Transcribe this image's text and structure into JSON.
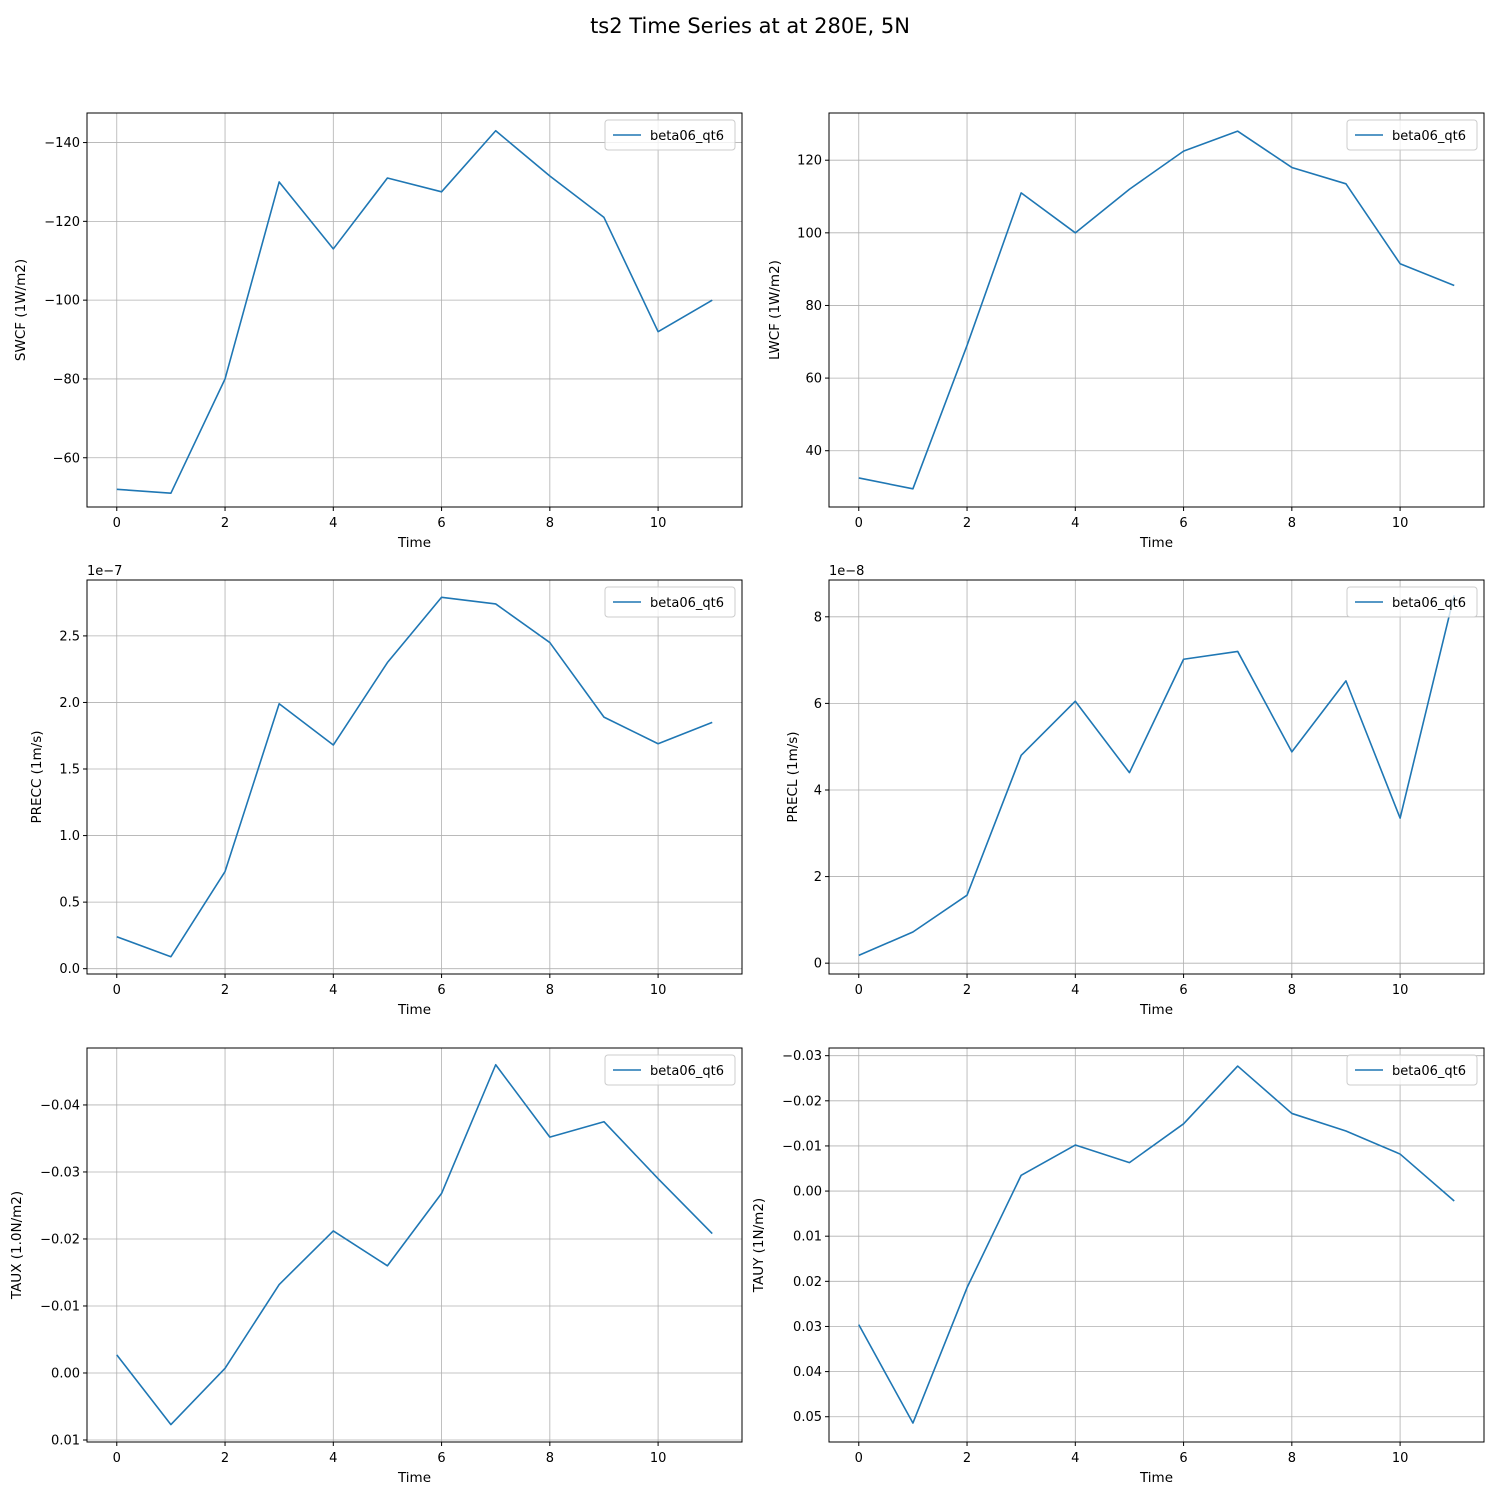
{
  "figure": {
    "title": "ts2 Time Series at at 280E, 5N"
  },
  "colors": {
    "series": "#1f77b4",
    "grid": "#b0b0b0",
    "axes": "#000000",
    "legend_border": "#cccccc"
  },
  "chart_data": [
    {
      "type": "line",
      "ylabel": "SWCF (1W/m2)",
      "xlabel": "Time",
      "invert_y": true,
      "ylim": [
        -47.5,
        -147.5
      ],
      "xlim": [
        -0.55,
        11.55
      ],
      "xticks": [
        0,
        2,
        4,
        6,
        8,
        10
      ],
      "yticks": [
        -60,
        -80,
        -100,
        -120,
        -140
      ],
      "ytick_labels": [
        "−60",
        "−80",
        "−100",
        "−120",
        "−140"
      ],
      "offset_text": "",
      "grid": true,
      "legend": "top-right",
      "series": [
        {
          "name": "beta06_qt6",
          "x": [
            0,
            1,
            2,
            3,
            4,
            5,
            6,
            7,
            8,
            9,
            10,
            11
          ],
          "y": [
            -52,
            -51,
            -80,
            -130,
            -113,
            -131,
            -127.5,
            -143,
            -131.5,
            -121,
            -92,
            -100
          ]
        }
      ]
    },
    {
      "type": "line",
      "ylabel": "LWCF (1W/m2)",
      "xlabel": "Time",
      "invert_y": true,
      "ylim": [
        24.5,
        133
      ],
      "xlim": [
        -0.55,
        11.55
      ],
      "xticks": [
        0,
        2,
        4,
        6,
        8,
        10
      ],
      "yticks": [
        40,
        60,
        80,
        100,
        120
      ],
      "ytick_labels": [
        "40",
        "60",
        "80",
        "100",
        "120"
      ],
      "offset_text": "",
      "grid": true,
      "legend": "top-right",
      "series": [
        {
          "name": "beta06_qt6",
          "x": [
            0,
            1,
            2,
            3,
            4,
            5,
            6,
            7,
            8,
            9,
            10,
            11
          ],
          "y": [
            32.5,
            29.5,
            69,
            111,
            100,
            112,
            122.5,
            128,
            118,
            113.5,
            91.5,
            85.5
          ]
        }
      ]
    },
    {
      "type": "line",
      "ylabel": "PRECC (1m/s)",
      "xlabel": "Time",
      "invert_y": true,
      "ylim": [
        -0.04,
        2.92
      ],
      "xlim": [
        -0.55,
        11.55
      ],
      "xticks": [
        0,
        2,
        4,
        6,
        8,
        10
      ],
      "yticks": [
        0.0,
        0.5,
        1.0,
        1.5,
        2.0,
        2.5
      ],
      "ytick_labels": [
        "0.0",
        "0.5",
        "1.0",
        "1.5",
        "2.0",
        "2.5"
      ],
      "offset_text": "1e−7",
      "grid": true,
      "legend": "top-right",
      "series": [
        {
          "name": "beta06_qt6",
          "x": [
            0,
            1,
            2,
            3,
            4,
            5,
            6,
            7,
            8,
            9,
            10,
            11
          ],
          "y": [
            0.24,
            0.09,
            0.73,
            1.99,
            1.68,
            2.3,
            2.79,
            2.74,
            2.45,
            1.89,
            1.69,
            1.85
          ]
        }
      ]
    },
    {
      "type": "line",
      "ylabel": "PRECL (1m/s)",
      "xlabel": "Time",
      "invert_y": true,
      "ylim": [
        -0.25,
        8.85
      ],
      "xlim": [
        -0.55,
        11.55
      ],
      "xticks": [
        0,
        2,
        4,
        6,
        8,
        10
      ],
      "yticks": [
        0,
        2,
        4,
        6,
        8
      ],
      "ytick_labels": [
        "0",
        "2",
        "4",
        "6",
        "8"
      ],
      "offset_text": "1e−8",
      "grid": true,
      "legend": "top-right",
      "series": [
        {
          "name": "beta06_qt6",
          "x": [
            0,
            1,
            2,
            3,
            4,
            5,
            6,
            7,
            8,
            9,
            10,
            11
          ],
          "y": [
            0.18,
            0.72,
            1.57,
            4.8,
            6.05,
            4.4,
            7.02,
            7.2,
            4.88,
            6.52,
            3.35,
            8.5
          ]
        }
      ]
    },
    {
      "type": "line",
      "ylabel": "TAUX (1.0N/m2)",
      "xlabel": "Time",
      "invert_y": true,
      "ylim": [
        0.0103,
        -0.0485
      ],
      "xlim": [
        -0.55,
        11.55
      ],
      "xticks": [
        0,
        2,
        4,
        6,
        8,
        10
      ],
      "yticks": [
        0.01,
        0.0,
        -0.01,
        -0.02,
        -0.03,
        -0.04
      ],
      "ytick_labels": [
        "0.01",
        "0.00",
        "−0.01",
        "−0.02",
        "−0.03",
        "−0.04"
      ],
      "offset_text": "",
      "grid": true,
      "legend": "top-right",
      "series": [
        {
          "name": "beta06_qt6",
          "x": [
            0,
            1,
            2,
            3,
            4,
            5,
            6,
            7,
            8,
            9,
            10,
            11
          ],
          "y": [
            -0.0027,
            0.0077,
            -0.0007,
            -0.0132,
            -0.0212,
            -0.016,
            -0.0268,
            -0.046,
            -0.0352,
            -0.0375,
            -0.029,
            -0.0208
          ]
        }
      ]
    },
    {
      "type": "line",
      "ylabel": "TAUY (1N/m2)",
      "xlabel": "Time",
      "invert_y": true,
      "ylim": [
        0.0556,
        -0.0317
      ],
      "xlim": [
        -0.55,
        11.55
      ],
      "xticks": [
        0,
        2,
        4,
        6,
        8,
        10
      ],
      "yticks": [
        0.05,
        0.04,
        0.03,
        0.02,
        0.01,
        0.0,
        -0.01,
        -0.02,
        -0.03
      ],
      "ytick_labels": [
        "0.05",
        "0.04",
        "0.03",
        "0.02",
        "0.01",
        "0.00",
        "−0.01",
        "−0.02",
        "−0.03"
      ],
      "offset_text": "",
      "grid": true,
      "legend": "top-right",
      "series": [
        {
          "name": "beta06_qt6",
          "x": [
            0,
            1,
            2,
            3,
            4,
            5,
            6,
            7,
            8,
            9,
            10,
            11
          ],
          "y": [
            0.0296,
            0.0514,
            0.0214,
            -0.0035,
            -0.0102,
            -0.0063,
            -0.0149,
            -0.0277,
            -0.0172,
            -0.0133,
            -0.0082,
            0.0022
          ]
        }
      ]
    }
  ]
}
